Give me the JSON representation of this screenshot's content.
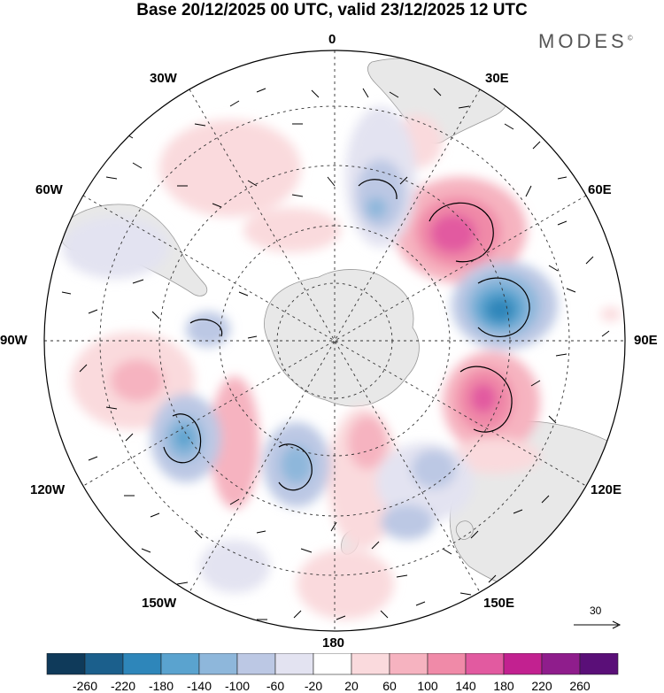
{
  "header": {
    "title": "Base 20/12/2025 00 UTC, valid 23/12/2025 12 UTC",
    "brand": "MODES",
    "brand_mark": "©"
  },
  "map": {
    "projection": "south polar stereographic",
    "longitude_labels": {
      "lon_0": "0",
      "lon_30e": "30E",
      "lon_60e": "60E",
      "lon_90e": "90E",
      "lon_120e": "120E",
      "lon_150e": "150E",
      "lon_180": "180",
      "lon_150w": "150W",
      "lon_120w": "120W",
      "lon_90w": "90W",
      "lon_60w": "60W",
      "lon_30w": "30W"
    },
    "wind_reference": {
      "value": "30"
    }
  },
  "colorbar": {
    "colors": [
      "#0f3a5a",
      "#1b5f8c",
      "#2e86ba",
      "#5aa3cf",
      "#8eb7db",
      "#bcc8e4",
      "#e3e3f1",
      "#ffffff",
      "#fadadd",
      "#f6b3c0",
      "#f08aa8",
      "#e25aa0",
      "#c22190",
      "#8f1d8c",
      "#5a0f78"
    ],
    "tick_labels": [
      "-260",
      "-220",
      "-180",
      "-140",
      "-100",
      "-60",
      "-20",
      "20",
      "60",
      "100",
      "140",
      "180",
      "220",
      "260"
    ]
  }
}
